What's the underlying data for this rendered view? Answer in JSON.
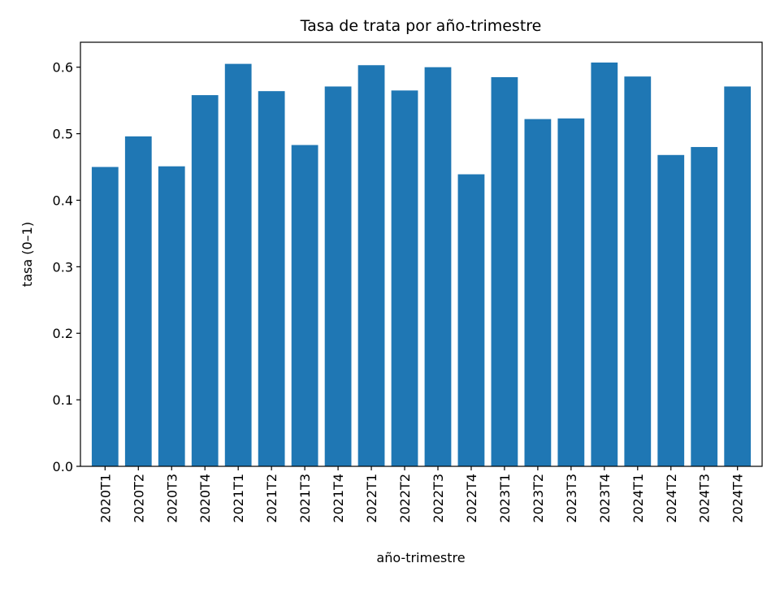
{
  "chart_data": {
    "type": "bar",
    "title": "Tasa de trata por año-trimestre",
    "xlabel": "año-trimestre",
    "ylabel": "tasa (0–1)",
    "categories": [
      "2020T1",
      "2020T2",
      "2020T3",
      "2020T4",
      "2021T1",
      "2021T2",
      "2021T3",
      "2021T4",
      "2022T1",
      "2022T2",
      "2022T3",
      "2022T4",
      "2023T1",
      "2023T2",
      "2023T3",
      "2023T4",
      "2024T1",
      "2024T2",
      "2024T3",
      "2024T4"
    ],
    "values": [
      0.45,
      0.496,
      0.451,
      0.558,
      0.605,
      0.564,
      0.483,
      0.571,
      0.603,
      0.565,
      0.6,
      0.439,
      0.585,
      0.522,
      0.523,
      0.607,
      0.586,
      0.468,
      0.48,
      0.571
    ],
    "ylim": [
      0,
      0.6375
    ],
    "yticks": [
      "0.0",
      "0.1",
      "0.2",
      "0.3",
      "0.4",
      "0.5",
      "0.6"
    ],
    "bar_color": "#1f77b4",
    "grid": false,
    "legend": "none"
  }
}
